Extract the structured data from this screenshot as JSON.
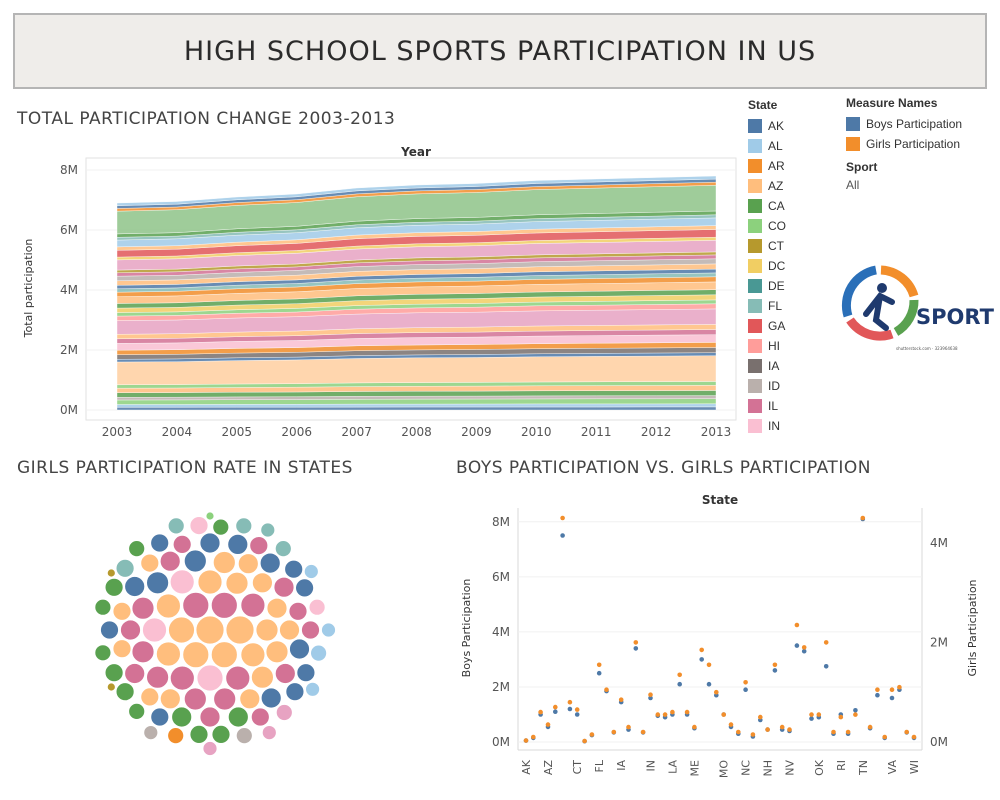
{
  "banner": {
    "title": "HIGH SCHOOL  SPORTS PARTICIPATION IN US"
  },
  "sections": {
    "area_title": "TOTAL PARTICIPATION CHANGE 2003-2013",
    "bubble_title": "GIRLS PARTICIPATION RATE IN STATES",
    "scatter_title": "BOYS PARTICIPATION VS. GIRLS PARTICIPATION"
  },
  "state_legend": {
    "title": "State",
    "items": [
      {
        "label": "AK",
        "color": "#4e79a7"
      },
      {
        "label": "AL",
        "color": "#a0cbe8"
      },
      {
        "label": "AR",
        "color": "#f28e2b"
      },
      {
        "label": "AZ",
        "color": "#ffbe7d"
      },
      {
        "label": "CA",
        "color": "#59a14f"
      },
      {
        "label": "CO",
        "color": "#8cd17d"
      },
      {
        "label": "CT",
        "color": "#b6992d"
      },
      {
        "label": "DC",
        "color": "#f1ce63"
      },
      {
        "label": "DE",
        "color": "#499894"
      },
      {
        "label": "FL",
        "color": "#86bcb6"
      },
      {
        "label": "GA",
        "color": "#e15759"
      },
      {
        "label": "HI",
        "color": "#ff9d9a"
      },
      {
        "label": "IA",
        "color": "#79706e"
      },
      {
        "label": "ID",
        "color": "#bab0ac"
      },
      {
        "label": "IL",
        "color": "#d37295"
      },
      {
        "label": "IN",
        "color": "#fabfd2"
      }
    ]
  },
  "measure_legend": {
    "title": "Measure Names",
    "items": [
      {
        "label": "Boys Participation",
        "color": "#4e79a7"
      },
      {
        "label": "Girls Participation",
        "color": "#f28e2b"
      }
    ]
  },
  "sport_filter": {
    "title": "Sport",
    "value": "All"
  },
  "logo": {
    "text": "SPORT",
    "caption": "shutterstock.com · 323964638"
  },
  "chart_data": [
    {
      "type": "area",
      "title": "TOTAL PARTICIPATION CHANGE 2003-2013",
      "top_axis_label": "Year",
      "ylabel": "Total participation",
      "x": [
        2003,
        2004,
        2005,
        2006,
        2007,
        2008,
        2009,
        2010,
        2011,
        2012,
        2013
      ],
      "y_ticks": [
        "0M",
        "2M",
        "4M",
        "6M",
        "8M"
      ],
      "ylim": [
        0,
        8
      ],
      "total_millions": [
        6.9,
        6.95,
        7.1,
        7.2,
        7.4,
        7.5,
        7.55,
        7.65,
        7.7,
        7.75,
        7.8
      ],
      "layer_shares": [
        {
          "color": "#4e79a7",
          "share": 0.012
        },
        {
          "color": "#a0cbe8",
          "share": 0.012
        },
        {
          "color": "#8cd17d",
          "share": 0.02
        },
        {
          "color": "#bab0ac",
          "share": 0.012
        },
        {
          "color": "#59a14f",
          "share": 0.02
        },
        {
          "color": "#ffbe7d",
          "share": 0.02
        },
        {
          "color": "#8cd17d",
          "share": 0.015
        },
        {
          "color": "#ffd0a0",
          "share": 0.1
        },
        {
          "color": "#4e79a7",
          "share": 0.012
        },
        {
          "color": "#79706e",
          "share": 0.02
        },
        {
          "color": "#f28e2b",
          "share": 0.02
        },
        {
          "color": "#fabfd2",
          "share": 0.03
        },
        {
          "color": "#d37295",
          "share": 0.02
        },
        {
          "color": "#ffbe7d",
          "share": 0.02
        },
        {
          "color": "#e7a3c2",
          "share": 0.06
        },
        {
          "color": "#ff9d9a",
          "share": 0.02
        },
        {
          "color": "#8cd17d",
          "share": 0.015
        },
        {
          "color": "#f1ce63",
          "share": 0.02
        },
        {
          "color": "#59a14f",
          "share": 0.02
        },
        {
          "color": "#ffbe7d",
          "share": 0.03
        },
        {
          "color": "#f28e2b",
          "share": 0.02
        },
        {
          "color": "#86bcb6",
          "share": 0.015
        },
        {
          "color": "#4e79a7",
          "share": 0.015
        },
        {
          "color": "#ffbe7d",
          "share": 0.02
        },
        {
          "color": "#bab0ac",
          "share": 0.02
        },
        {
          "color": "#d37295",
          "share": 0.015
        },
        {
          "color": "#b6992d",
          "share": 0.012
        },
        {
          "color": "#e7a3c2",
          "share": 0.045
        },
        {
          "color": "#f1ce63",
          "share": 0.012
        },
        {
          "color": "#e15759",
          "share": 0.03
        },
        {
          "color": "#ffbe7d",
          "share": 0.015
        },
        {
          "color": "#a0cbe8",
          "share": 0.03
        },
        {
          "color": "#86bcb6",
          "share": 0.012
        },
        {
          "color": "#59a14f",
          "share": 0.015
        },
        {
          "color": "#8fc489",
          "share": 0.1
        },
        {
          "color": "#f28e2b",
          "share": 0.012
        },
        {
          "color": "#4e79a7",
          "share": 0.012
        },
        {
          "color": "#a0cbe8",
          "share": 0.012
        }
      ]
    },
    {
      "type": "bubble",
      "title": "GIRLS PARTICIPATION RATE IN STATES",
      "bubbles": [
        {
          "color": "#ffbe7d",
          "r": 14
        },
        {
          "color": "#ffbe7d",
          "r": 14
        },
        {
          "color": "#ffbe7d",
          "r": 13
        },
        {
          "color": "#ffbe7d",
          "r": 13
        },
        {
          "color": "#ffbe7d",
          "r": 13
        },
        {
          "color": "#ffbe7d",
          "r": 12
        },
        {
          "color": "#ffbe7d",
          "r": 12
        },
        {
          "color": "#ffbe7d",
          "r": 12
        },
        {
          "color": "#ffbe7d",
          "r": 12
        },
        {
          "color": "#ffbe7d",
          "r": 11
        },
        {
          "color": "#ffbe7d",
          "r": 11
        },
        {
          "color": "#ffbe7d",
          "r": 11
        },
        {
          "color": "#ffbe7d",
          "r": 11
        },
        {
          "color": "#ffbe7d",
          "r": 11
        },
        {
          "color": "#ffbe7d",
          "r": 10
        },
        {
          "color": "#ffbe7d",
          "r": 10
        },
        {
          "color": "#ffbe7d",
          "r": 10
        },
        {
          "color": "#ffbe7d",
          "r": 10
        },
        {
          "color": "#ffbe7d",
          "r": 10
        },
        {
          "color": "#ffbe7d",
          "r": 10
        },
        {
          "color": "#ffbe7d",
          "r": 9
        },
        {
          "color": "#ffbe7d",
          "r": 9
        },
        {
          "color": "#ffbe7d",
          "r": 9
        },
        {
          "color": "#ffbe7d",
          "r": 9
        },
        {
          "color": "#d37295",
          "r": 13
        },
        {
          "color": "#d37295",
          "r": 13
        },
        {
          "color": "#d37295",
          "r": 12
        },
        {
          "color": "#d37295",
          "r": 12
        },
        {
          "color": "#d37295",
          "r": 12
        },
        {
          "color": "#d37295",
          "r": 11
        },
        {
          "color": "#d37295",
          "r": 11
        },
        {
          "color": "#d37295",
          "r": 11
        },
        {
          "color": "#d37295",
          "r": 11
        },
        {
          "color": "#d37295",
          "r": 11
        },
        {
          "color": "#d37295",
          "r": 10
        },
        {
          "color": "#d37295",
          "r": 10
        },
        {
          "color": "#d37295",
          "r": 10
        },
        {
          "color": "#d37295",
          "r": 10
        },
        {
          "color": "#d37295",
          "r": 10
        },
        {
          "color": "#d37295",
          "r": 10
        },
        {
          "color": "#d37295",
          "r": 9
        },
        {
          "color": "#d37295",
          "r": 9
        },
        {
          "color": "#d37295",
          "r": 9
        },
        {
          "color": "#d37295",
          "r": 9
        },
        {
          "color": "#d37295",
          "r": 9
        },
        {
          "color": "#4e79a7",
          "r": 11
        },
        {
          "color": "#4e79a7",
          "r": 11
        },
        {
          "color": "#4e79a7",
          "r": 10
        },
        {
          "color": "#4e79a7",
          "r": 10
        },
        {
          "color": "#4e79a7",
          "r": 10
        },
        {
          "color": "#4e79a7",
          "r": 10
        },
        {
          "color": "#4e79a7",
          "r": 10
        },
        {
          "color": "#4e79a7",
          "r": 10
        },
        {
          "color": "#4e79a7",
          "r": 9
        },
        {
          "color": "#4e79a7",
          "r": 9
        },
        {
          "color": "#4e79a7",
          "r": 9
        },
        {
          "color": "#4e79a7",
          "r": 9
        },
        {
          "color": "#4e79a7",
          "r": 9
        },
        {
          "color": "#4e79a7",
          "r": 9
        },
        {
          "color": "#4e79a7",
          "r": 9
        },
        {
          "color": "#59a14f",
          "r": 10
        },
        {
          "color": "#59a14f",
          "r": 10
        },
        {
          "color": "#59a14f",
          "r": 9
        },
        {
          "color": "#59a14f",
          "r": 9
        },
        {
          "color": "#59a14f",
          "r": 9
        },
        {
          "color": "#59a14f",
          "r": 9
        },
        {
          "color": "#59a14f",
          "r": 9
        },
        {
          "color": "#59a14f",
          "r": 8
        },
        {
          "color": "#59a14f",
          "r": 8
        },
        {
          "color": "#59a14f",
          "r": 8
        },
        {
          "color": "#59a14f",
          "r": 8
        },
        {
          "color": "#59a14f",
          "r": 8
        },
        {
          "color": "#86bcb6",
          "r": 9
        },
        {
          "color": "#86bcb6",
          "r": 8
        },
        {
          "color": "#86bcb6",
          "r": 8
        },
        {
          "color": "#86bcb6",
          "r": 8
        },
        {
          "color": "#86bcb6",
          "r": 7
        },
        {
          "color": "#fabfd2",
          "r": 13
        },
        {
          "color": "#fabfd2",
          "r": 12
        },
        {
          "color": "#fabfd2",
          "r": 12
        },
        {
          "color": "#fabfd2",
          "r": 9
        },
        {
          "color": "#fabfd2",
          "r": 8
        },
        {
          "color": "#a0cbe8",
          "r": 8
        },
        {
          "color": "#a0cbe8",
          "r": 7
        },
        {
          "color": "#a0cbe8",
          "r": 7
        },
        {
          "color": "#a0cbe8",
          "r": 7
        },
        {
          "color": "#e7a3c2",
          "r": 8
        },
        {
          "color": "#e7a3c2",
          "r": 7
        },
        {
          "color": "#e7a3c2",
          "r": 7
        },
        {
          "color": "#bab0ac",
          "r": 8
        },
        {
          "color": "#bab0ac",
          "r": 7
        },
        {
          "color": "#f28e2b",
          "r": 8
        },
        {
          "color": "#b6992d",
          "r": 4
        },
        {
          "color": "#b6992d",
          "r": 4
        },
        {
          "color": "#8cd17d",
          "r": 4
        }
      ]
    },
    {
      "type": "scatter",
      "title": "BOYS PARTICIPATION VS. GIRLS PARTICIPATION",
      "top_axis_label": "State",
      "ylabel_left": "Boys Participation",
      "ylabel_right": "Girls Participation",
      "ylim_left": [
        0,
        8.5
      ],
      "ylim_right": [
        0,
        4.7
      ],
      "y_ticks_left": [
        "0M",
        "2M",
        "4M",
        "6M",
        "8M"
      ],
      "y_ticks_right": [
        "0M",
        "2M",
        "4M"
      ],
      "x_tick_labels": [
        "AK",
        "AZ",
        "CT",
        "FL",
        "IA",
        "IN",
        "LA",
        "ME",
        "MO",
        "NC",
        "NH",
        "NV",
        "OK",
        "RI",
        "TN",
        "VA",
        "WI"
      ],
      "boys_millions": [
        0.05,
        0.15,
        1.0,
        0.55,
        1.1,
        7.5,
        1.2,
        1.0,
        0.03,
        0.25,
        2.5,
        1.85,
        0.35,
        1.45,
        0.45,
        3.4,
        0.35,
        1.6,
        0.95,
        0.9,
        1.0,
        2.1,
        1.0,
        0.5,
        3.0,
        2.1,
        1.7,
        1.0,
        0.55,
        0.3,
        1.9,
        0.2,
        0.8,
        0.45,
        2.6,
        0.45,
        0.4,
        3.5,
        3.3,
        0.85,
        0.9,
        2.75,
        0.3,
        1.0,
        0.3,
        1.15,
        8.1,
        0.5,
        1.7,
        0.15,
        1.6,
        1.9,
        0.35,
        0.15
      ],
      "girls_millions": [
        0.03,
        0.1,
        0.6,
        0.35,
        0.7,
        4.5,
        0.8,
        0.65,
        0.02,
        0.15,
        1.55,
        1.05,
        0.2,
        0.85,
        0.3,
        2.0,
        0.2,
        0.95,
        0.55,
        0.55,
        0.6,
        1.35,
        0.6,
        0.3,
        1.85,
        1.55,
        1.0,
        0.55,
        0.35,
        0.2,
        1.2,
        0.15,
        0.5,
        0.25,
        1.55,
        0.3,
        0.25,
        2.35,
        1.9,
        0.55,
        0.55,
        2.0,
        0.2,
        0.5,
        0.2,
        0.55,
        4.5,
        0.3,
        1.05,
        0.1,
        1.05,
        1.1,
        0.2,
        0.1
      ]
    }
  ]
}
